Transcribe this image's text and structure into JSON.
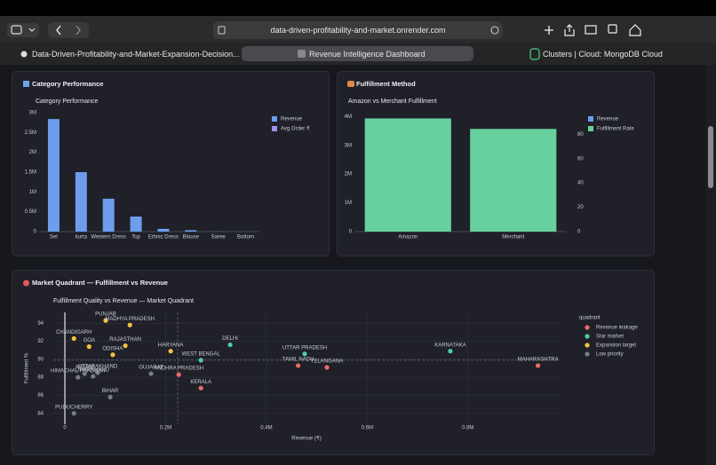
{
  "browser": {
    "url": "data-driven-profitability-and-market.onrender.com",
    "tabs": [
      "Data-Driven-Profitability-and-Market-Expansion-Decision...",
      "Revenue Intelligence Dashboard",
      "Clusters | Cloud: MongoDB Cloud"
    ]
  },
  "panel_headings": [
    "Category Performance",
    "Fulfillment Method",
    "Market Quadrant — Fulfillment vs Revenue"
  ],
  "chart_data": [
    {
      "type": "bar",
      "title": "Category Performance",
      "categories": [
        "Set",
        "kurta",
        "Western Dress",
        "Top",
        "Ethnic Dress",
        "Blouse",
        "Saree",
        "Bottom"
      ],
      "series": [
        {
          "name": "Revenue",
          "color": "#6d9eee",
          "values": [
            2840000,
            1500000,
            830000,
            380000,
            70000,
            35000,
            3000,
            300
          ]
        },
        {
          "name": "Avg Order ₹",
          "color": "#a98cf0",
          "values": [
            null,
            null,
            null,
            null,
            null,
            null,
            null,
            null
          ]
        }
      ],
      "ylim": [
        0,
        3000000
      ],
      "yticks": [
        0,
        {
          "value": 500000,
          "label": "0.5M"
        },
        {
          "value": 1000000,
          "label": "1M"
        },
        {
          "value": 1500000,
          "label": "1.5M"
        },
        {
          "value": 2000000,
          "label": "2M"
        },
        {
          "value": 2500000,
          "label": "2.5M"
        },
        {
          "value": 3000000,
          "label": "3M"
        }
      ],
      "grid": false,
      "legend": "top-right"
    },
    {
      "type": "bar",
      "title": "Amazon vs Merchant Fulfillment",
      "categories": [
        "Amazon",
        "Merchant"
      ],
      "series": [
        {
          "name": "Revenue",
          "color": "#6d9eee",
          "values": [
            null,
            null
          ]
        },
        {
          "name": "Fulfillment Rate",
          "color": "#66d19e",
          "values": [
            93,
            84.4
          ],
          "axis": "y2"
        }
      ],
      "ylim": [
        0,
        4100000
      ],
      "yticks": [
        0,
        {
          "value": 1000000,
          "label": "1M"
        },
        {
          "value": 2000000,
          "label": "2M"
        },
        {
          "value": 3000000,
          "label": "3M"
        },
        {
          "value": 4000000,
          "label": "4M"
        }
      ],
      "y2lim": [
        0,
        97
      ],
      "y2ticks": [
        0,
        20,
        40,
        60,
        80
      ],
      "grid": false,
      "legend": "top-right"
    },
    {
      "type": "scatter",
      "title": "Fulfillment Quality vs Revenue — Market Quadrant",
      "xlabel": "Revenue (₹)",
      "ylabel": "Fulfillment %",
      "legend_title": "quadrant",
      "series": [
        {
          "name": "Revenue leakage",
          "color": "#ee6a6a",
          "labels": [
            "MAHARASHTRA",
            "TAMIL NADU",
            "TELANGANA",
            "ANDHRA PRADESH",
            "KERALA"
          ],
          "x": [
            939000,
            463000,
            520000,
            226000,
            270000
          ],
          "values": [
            89.3,
            89.3,
            89.1,
            88.3,
            86.8
          ]
        },
        {
          "name": "Star market",
          "color": "#4fd1a1",
          "labels": [
            "DELHI",
            "WEST BENGAL",
            "UTTAR PRADESH",
            "KARNATAKA"
          ],
          "x": [
            328000,
            270000,
            476000,
            765000
          ],
          "values": [
            91.6,
            89.9,
            90.6,
            90.9
          ]
        },
        {
          "name": "Expansion target",
          "color": "#f5c243",
          "labels": [
            "PUNJAB",
            "MADHYA PRADESH",
            "CHANDIGARH",
            "GOA",
            "RAJASTHAN",
            "ODISHA",
            "HARYANA"
          ],
          "x": [
            81000,
            129000,
            18000,
            48000,
            120000,
            95000,
            210000
          ],
          "values": [
            94.3,
            93.8,
            92.3,
            91.4,
            91.5,
            90.5,
            90.9
          ]
        },
        {
          "name": "Low priority",
          "color": "#7a7c84",
          "labels": [
            "GUJARAT",
            "BIHAR",
            "PUDUCHERRY",
            "UTTARAKHAND",
            "JHARKHAND",
            "HIMACHAL PRADESH",
            "ASSAM"
          ],
          "x": [
            171000,
            90000,
            18000,
            65000,
            56000,
            26000,
            39000
          ],
          "values": [
            88.4,
            85.8,
            84.0,
            88.5,
            88.1,
            88.0,
            88.4
          ]
        }
      ],
      "xlim": [
        -23000,
        982000
      ],
      "xticks": [
        0,
        {
          "value": 200000,
          "label": "0.2M"
        },
        {
          "value": 400000,
          "label": "0.4M"
        },
        {
          "value": 600000,
          "label": "0.6M"
        },
        {
          "value": 800000,
          "label": "0.8M"
        }
      ],
      "ylim": [
        82.8,
        95.2
      ],
      "yticks": [
        84,
        86,
        88,
        90,
        92,
        94
      ],
      "x_reference": 224000,
      "y_reference": 89.9,
      "grid": true,
      "legend": "top-right"
    }
  ]
}
